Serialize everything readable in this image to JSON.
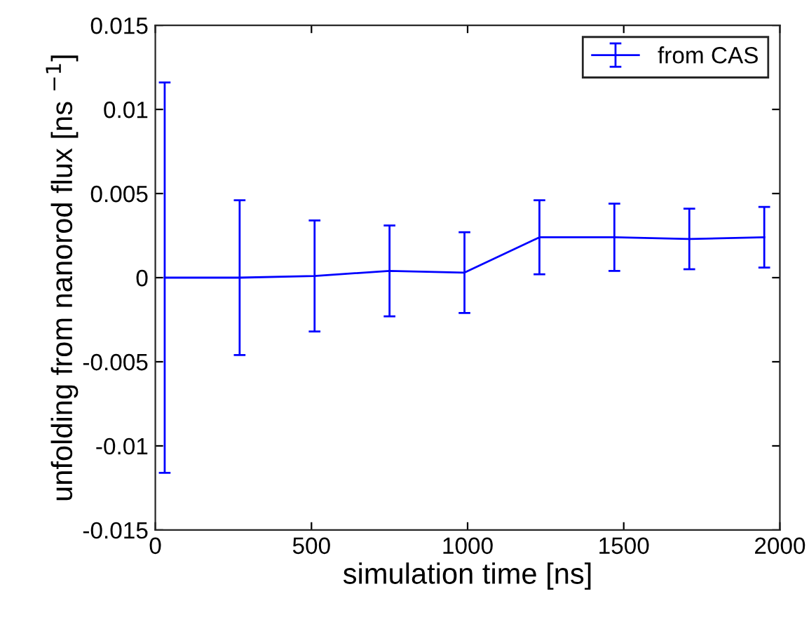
{
  "chart_data": {
    "type": "line",
    "xlabel": "simulation time [ns]",
    "ylabel": "unfolding from nanorod flux [ns $^{−1}$]",
    "x": [
      30,
      270,
      510,
      750,
      990,
      1230,
      1470,
      1710,
      1950
    ],
    "series": [
      {
        "name": "from CAS",
        "color": "#0000ff",
        "values": [
          0,
          0,
          0.0001,
          0.0004,
          0.0003,
          0.0024,
          0.0024,
          0.0023,
          0.0024
        ],
        "errors": [
          0.0116,
          0.0046,
          0.0033,
          0.0027,
          0.0024,
          0.0022,
          0.002,
          0.0018,
          0.0018
        ]
      }
    ],
    "xlim": [
      0,
      2000
    ],
    "xticks": [
      0,
      500,
      1000,
      1500,
      2000
    ],
    "ylim": [
      -0.015,
      0.015
    ],
    "yticks": [
      -0.015,
      -0.01,
      -0.005,
      0,
      0.005,
      0.01,
      0.015
    ],
    "legend": "top right",
    "grid": false,
    "marker": "none",
    "line_style": "solid"
  }
}
